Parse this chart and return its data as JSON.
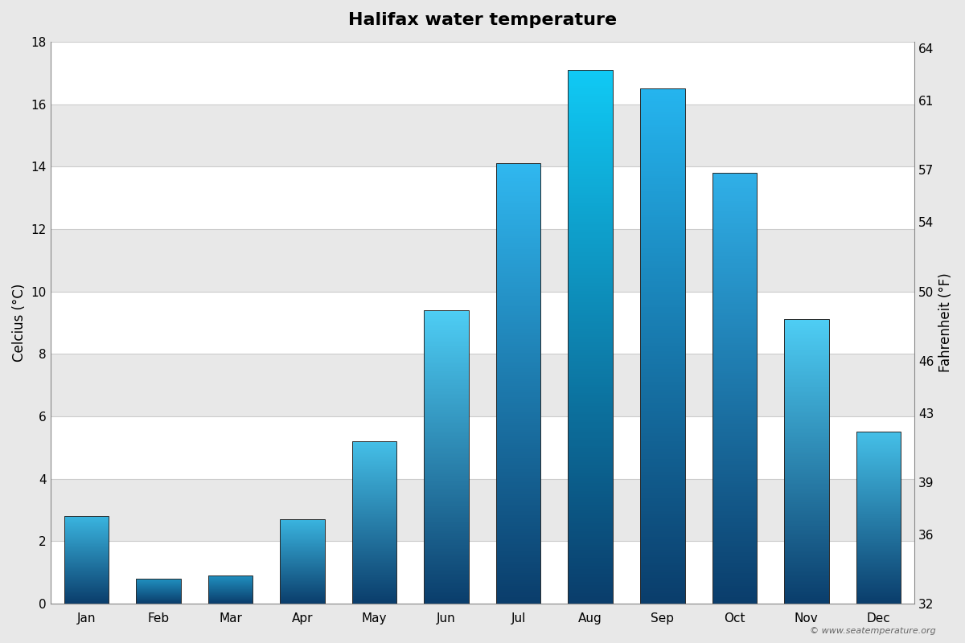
{
  "title": "Halifax water temperature",
  "months": [
    "Jan",
    "Feb",
    "Mar",
    "Apr",
    "May",
    "Jun",
    "Jul",
    "Aug",
    "Sep",
    "Oct",
    "Nov",
    "Dec"
  ],
  "celsius_values": [
    2.8,
    0.8,
    0.9,
    2.7,
    5.2,
    9.4,
    14.1,
    17.1,
    16.5,
    13.8,
    9.1,
    5.5
  ],
  "ylabel_left": "Celcius (°C)",
  "ylabel_right": "Fahrenheit (°F)",
  "ylim_celsius": [
    0,
    18
  ],
  "yticks_celsius": [
    0,
    2,
    4,
    6,
    8,
    10,
    12,
    14,
    16,
    18
  ],
  "yticks_fahrenheit": [
    32,
    36,
    39,
    43,
    46,
    50,
    54,
    57,
    61,
    64
  ],
  "background_color": "#e8e8e8",
  "plot_bg_color": "#f2f2f2",
  "bar_bottom_color": "#0a3d6b",
  "band_white": "#ffffff",
  "band_gray": "#e8e8e8",
  "grid_color": "#cccccc",
  "copyright_text": "© www.seatemperature.org",
  "title_fontsize": 16,
  "axis_label_fontsize": 12,
  "tick_fontsize": 11,
  "bar_width": 0.62,
  "n_gradient_steps": 200,
  "bar_top_colors": [
    "#3ab5e0",
    "#2090c0",
    "#2090c0",
    "#3ab5e0",
    "#45c0e8",
    "#4ecef5",
    "#30b8f0",
    "#10caf5",
    "#25b5ef",
    "#30b0e8",
    "#4ecef5",
    "#45c0e8"
  ]
}
